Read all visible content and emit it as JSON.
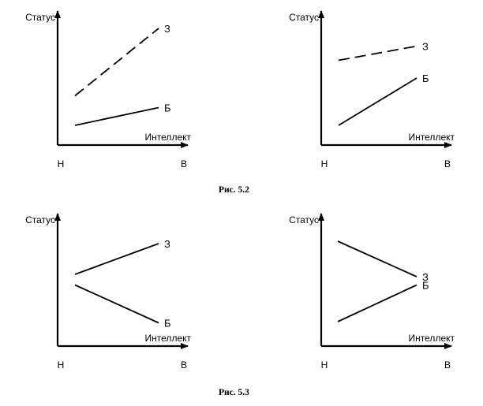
{
  "figures": [
    {
      "caption": "Рис. 5.2"
    },
    {
      "caption": "Рис. 5.3"
    }
  ],
  "chart_data": [
    {
      "type": "line",
      "ylabel": "Статус",
      "xlabel": "Интеллект",
      "categories": [
        "Н",
        "В"
      ],
      "ylim": [
        0,
        10
      ],
      "series": [
        {
          "name": "З",
          "values": [
            3.9,
            9.6
          ],
          "style": "dashed"
        },
        {
          "name": "Б",
          "values": [
            1.4,
            2.9
          ],
          "style": "solid"
        }
      ]
    },
    {
      "type": "line",
      "ylabel": "Статус",
      "xlabel": "Интеллект",
      "categories": [
        "Н",
        "В"
      ],
      "ylim": [
        0,
        10
      ],
      "series": [
        {
          "name": "З",
          "values": [
            6.9,
            8.1
          ],
          "style": "dashed"
        },
        {
          "name": "Б",
          "values": [
            1.4,
            5.4
          ],
          "style": "solid"
        }
      ]
    },
    {
      "type": "line",
      "ylabel": "Статус",
      "xlabel": "Интеллект",
      "categories": [
        "Н",
        "В"
      ],
      "ylim": [
        0,
        10
      ],
      "series": [
        {
          "name": "З",
          "values": [
            5.8,
            8.4
          ],
          "style": "solid"
        },
        {
          "name": "Б",
          "values": [
            4.9,
            1.7
          ],
          "style": "solid"
        }
      ]
    },
    {
      "type": "line",
      "ylabel": "Статус",
      "xlabel": "Интеллект",
      "categories": [
        "Н",
        "В"
      ],
      "ylim": [
        0,
        10
      ],
      "series": [
        {
          "name": "З",
          "values": [
            8.6,
            5.6
          ],
          "style": "solid"
        },
        {
          "name": "Б",
          "values": [
            1.8,
            4.9
          ],
          "style": "solid"
        }
      ]
    }
  ]
}
